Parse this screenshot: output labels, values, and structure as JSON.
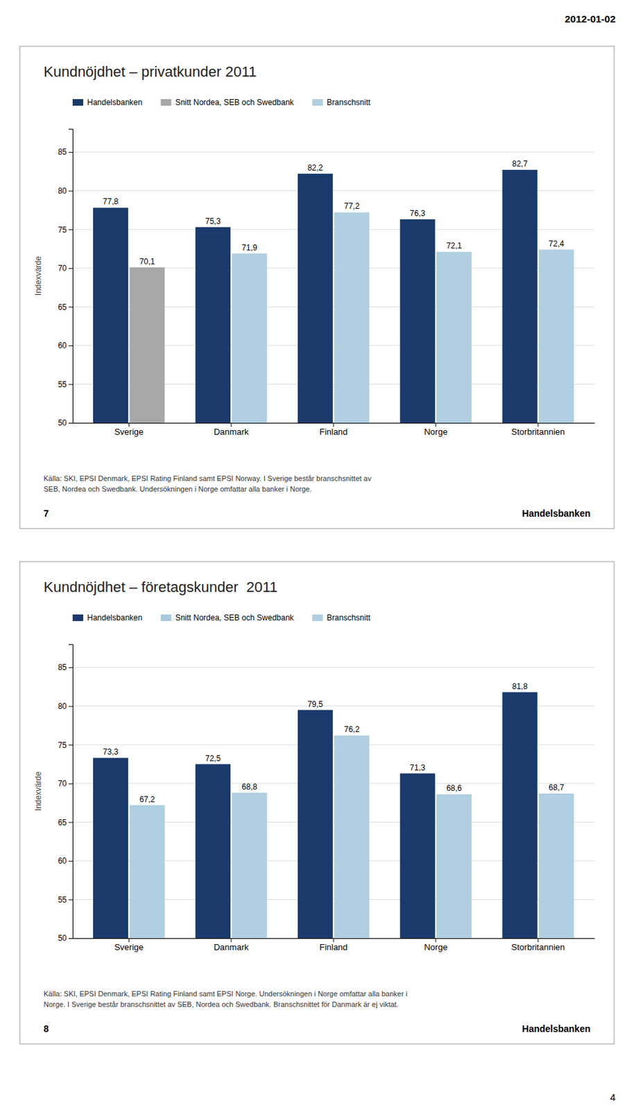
{
  "annotations": [
    "2012-01-02",
    "4"
  ],
  "chart_data": [
    {
      "type": "bar",
      "title": "Kundnöjdhet – privatkunder 2011",
      "categories": [
        "Sverige",
        "Danmark",
        "Finland",
        "Norge",
        "Storbritannien"
      ],
      "series": [
        {
          "name": "Handelsbanken",
          "color": "#1a3a6b",
          "values": [
            77.8,
            75.3,
            82.2,
            76.3,
            82.7
          ],
          "value_labels": [
            "77,8",
            "75,3",
            "82,2",
            "76,3",
            "82,7"
          ]
        },
        {
          "name": "Snitt Nordea, SEB och Swedbank",
          "color": "#a8a8a8",
          "values": [
            70.1,
            null,
            null,
            null,
            null
          ],
          "value_labels": [
            "70,1",
            null,
            null,
            null,
            null
          ]
        },
        {
          "name": "Branschsnitt",
          "color": "#b0cfe0",
          "values": [
            null,
            71.9,
            77.2,
            72.1,
            72.4
          ],
          "value_labels": [
            null,
            "71,9",
            "77,2",
            "72,1",
            "72,4"
          ]
        }
      ],
      "ylim": [
        50,
        88
      ],
      "yticks": [
        50,
        55,
        60,
        65,
        70,
        75,
        80,
        85
      ],
      "y_label": "Indexvärde",
      "grid": true,
      "legend": "top",
      "data_labels": true,
      "annotations": [
        "Källa: SKI, EPSI Denmark, EPSI Rating Finland samt EPSI Norway. I Sverige består branschsnittet av\nSEB, Nordea och Swedbank. Undersökningen i Norge omfattar alla banker i Norge.",
        "7",
        "Handelsbanken"
      ]
    },
    {
      "type": "bar",
      "title": "Kundnöjdhet – företagskunder  2011",
      "categories": [
        "Sverige",
        "Danmark",
        "Finland",
        "Norge",
        "Storbritannien"
      ],
      "series": [
        {
          "name": "Handelsbanken",
          "color": "#1a3a6b",
          "values": [
            73.3,
            72.5,
            79.5,
            71.3,
            81.8
          ],
          "value_labels": [
            "73,3",
            "72,5",
            "79,5",
            "71,3",
            "81,8"
          ]
        },
        {
          "name": "Snitt Nordea, SEB och Swedbank",
          "color": "#a8c8dc",
          "values": [
            null,
            null,
            null,
            null,
            null
          ],
          "value_labels": [
            null,
            null,
            null,
            null,
            null
          ]
        },
        {
          "name": "Branschsnitt",
          "color": "#b0cfe0",
          "values": [
            67.2,
            68.8,
            76.2,
            68.6,
            68.7
          ],
          "value_labels": [
            "67,2",
            "68,8",
            "76,2",
            "68,6",
            "68,7"
          ]
        }
      ],
      "ylim": [
        50,
        88
      ],
      "yticks": [
        50,
        55,
        60,
        65,
        70,
        75,
        80,
        85
      ],
      "y_label": "Indexvärde",
      "grid": true,
      "legend": "top",
      "data_labels": true,
      "annotations": [
        "Källa: SKI, EPSI Denmark, EPSI Rating Finland samt EPSI Norge. Undersökningen i Norge omfattar alla banker i\nNorge. I Sverige består branschsnittet av SEB, Nordea och Swedbank. Branschsnittet för Danmark är ej viktat.",
        "8",
        "Handelsbanken"
      ]
    }
  ]
}
